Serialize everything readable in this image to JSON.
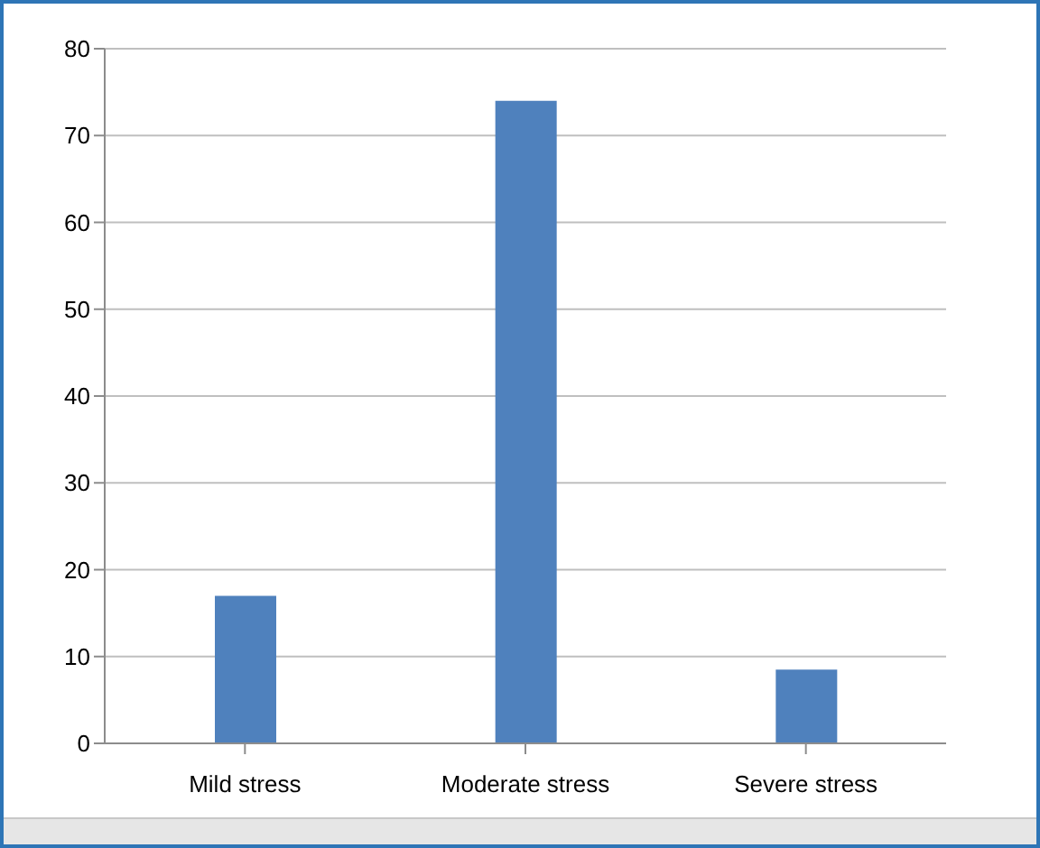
{
  "chart_data": {
    "type": "bar",
    "categories": [
      "Mild stress",
      "Moderate stress",
      "Severe stress"
    ],
    "values": [
      17,
      74,
      8.5
    ],
    "color": "#4f81bd",
    "ylim": [
      0,
      80
    ],
    "yticks": [
      0,
      10,
      20,
      30,
      40,
      50,
      60,
      70,
      80
    ],
    "grid": "y"
  }
}
